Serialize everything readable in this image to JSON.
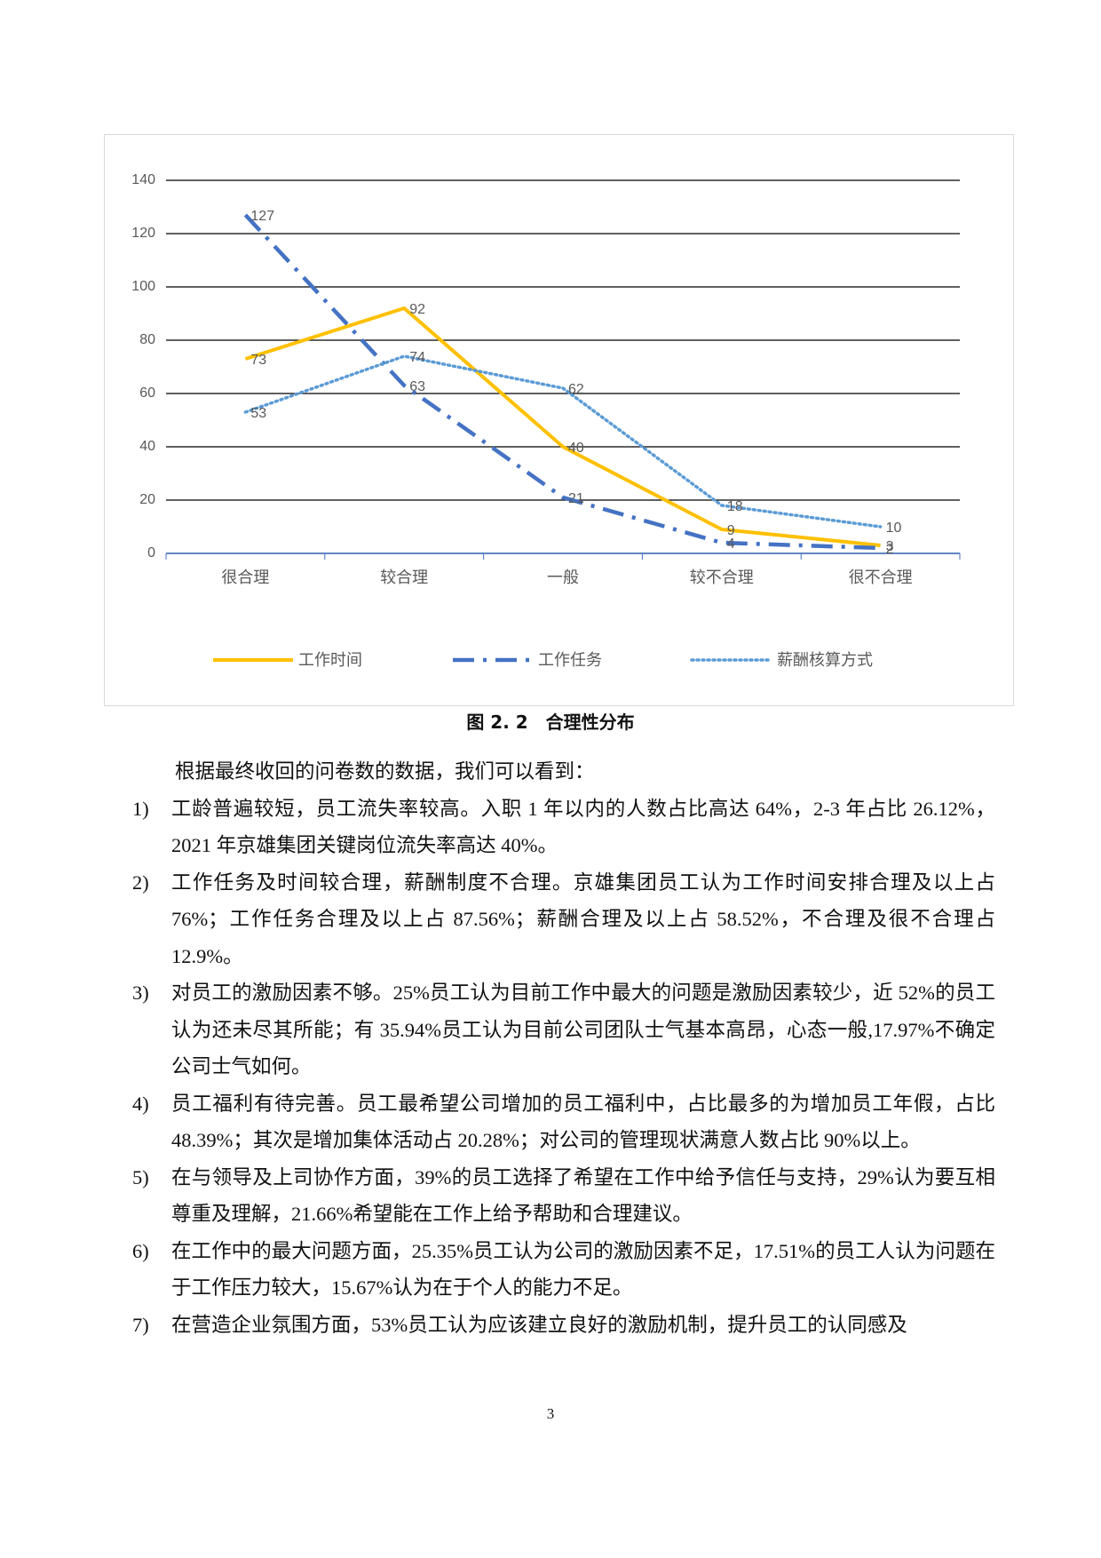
{
  "chart_data": {
    "type": "line",
    "categories": [
      "很合理",
      "较合理",
      "一般",
      "较不合理",
      "很不合理"
    ],
    "series": [
      {
        "name": "工作时间",
        "color": "#ffc000",
        "line_style": "solid",
        "values": [
          73,
          92,
          40,
          9,
          3
        ]
      },
      {
        "name": "工作任务",
        "color": "#4472c4",
        "line_style": "dashdot",
        "values": [
          127,
          63,
          21,
          4,
          2
        ]
      },
      {
        "name": "薪酬核算方式",
        "color": "#5b9bd5",
        "line_style": "dotted",
        "values": [
          53,
          74,
          62,
          18,
          10
        ]
      }
    ],
    "ylim": [
      0,
      140
    ],
    "yticks": [
      0,
      20,
      40,
      60,
      80,
      100,
      120,
      140
    ],
    "grid": true,
    "legend": "bottom",
    "data_labels": true
  },
  "caption": "图 2. 2　合理性分布",
  "body": {
    "intro": "根据最终收回的问卷数的数据，我们可以看到：",
    "items": [
      {
        "num": "1)",
        "text": "工龄普遍较短，员工流失率较高。入职 1 年以内的人数占比高达 64%，2-3 年占比 26.12%，2021 年京雄集团关键岗位流失率高达 40%。"
      },
      {
        "num": "2)",
        "text": "工作任务及时间较合理，薪酬制度不合理。京雄集团员工认为工作时间安排合理及以上占 76%；工作任务合理及以上占 87.56%；薪酬合理及以上占 58.52%，不合理及很不合理占 12.9%。"
      },
      {
        "num": "3)",
        "text": "对员工的激励因素不够。25%员工认为目前工作中最大的问题是激励因素较少，近 52%的员工认为还未尽其所能；有 35.94%员工认为目前公司团队士气基本高昂，心态一般,17.97%不确定公司士气如何。"
      },
      {
        "num": "4)",
        "text": "员工福利有待完善。员工最希望公司增加的员工福利中，占比最多的为增加员工年假，占比 48.39%；其次是增加集体活动占 20.28%；对公司的管理现状满意人数占比 90%以上。"
      },
      {
        "num": "5)",
        "text": "在与领导及上司协作方面，39%的员工选择了希望在工作中给予信任与支持，29%认为要互相尊重及理解，21.66%希望能在工作上给予帮助和合理建议。"
      },
      {
        "num": "6)",
        "text": "在工作中的最大问题方面，25.35%员工认为公司的激励因素不足，17.51%的员工人认为问题在于工作压力较大，15.67%认为在于个人的能力不足。"
      },
      {
        "num": "7)",
        "text": "在营造企业氛围方面，53%员工认为应该建立良好的激励机制，提升员工的认同感及"
      }
    ]
  },
  "page_number": "3"
}
